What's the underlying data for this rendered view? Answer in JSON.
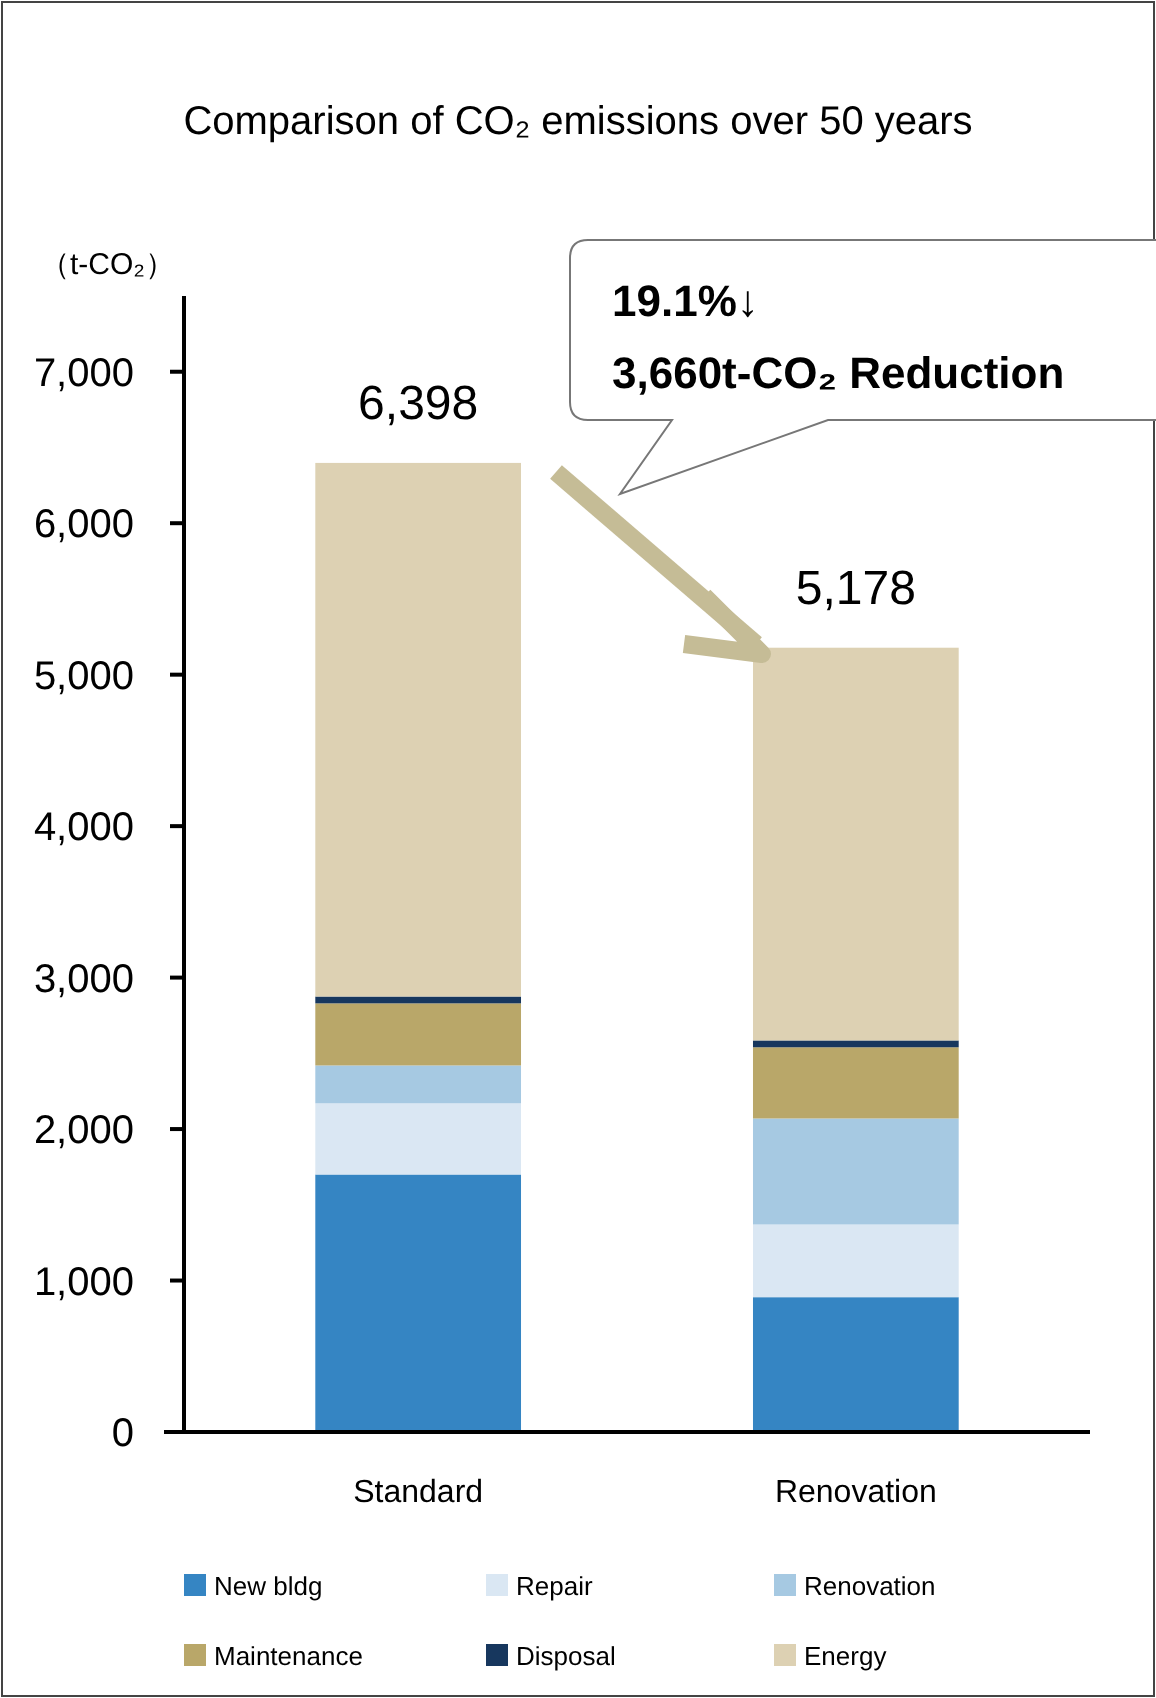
{
  "chart_data": {
    "type": "bar",
    "title": "Comparison of CO₂ emissions over 50 years",
    "ylabel": "（t-CO₂）",
    "categories": [
      "Standard",
      "Renovation"
    ],
    "stacked": true,
    "series": [
      {
        "name": "New bldg",
        "color": "#3585c3",
        "values": [
          1700,
          890
        ]
      },
      {
        "name": "Repair",
        "color": "#dae7f3",
        "values": [
          470,
          480
        ]
      },
      {
        "name": "Renovation",
        "color": "#a6c9e2",
        "values": [
          250,
          700
        ]
      },
      {
        "name": "Maintenance",
        "color": "#b9a769",
        "values": [
          410,
          470
        ]
      },
      {
        "name": "Disposal",
        "color": "#17375e",
        "values": [
          45,
          45
        ]
      },
      {
        "name": "Energy",
        "color": "#ddd1b3",
        "values": [
          3523,
          2593
        ]
      }
    ],
    "totals": [
      "6,398",
      "5,178"
    ],
    "ylim": [
      0,
      7500
    ],
    "yticks": [
      0,
      {
        "value": 1000,
        "label": "1,000"
      },
      {
        "value": 2000,
        "label": "2,000"
      },
      {
        "value": 3000,
        "label": "3,000"
      },
      {
        "value": 4000,
        "label": "4,000"
      },
      {
        "value": 5000,
        "label": "5,000"
      },
      {
        "value": 6000,
        "label": "6,000"
      },
      {
        "value": 7000,
        "label": "7,000"
      }
    ],
    "annotations": [
      "19.1%↓",
      "3,660t-CO₂ Reduction"
    ],
    "legend": "bottom",
    "grid": false
  }
}
